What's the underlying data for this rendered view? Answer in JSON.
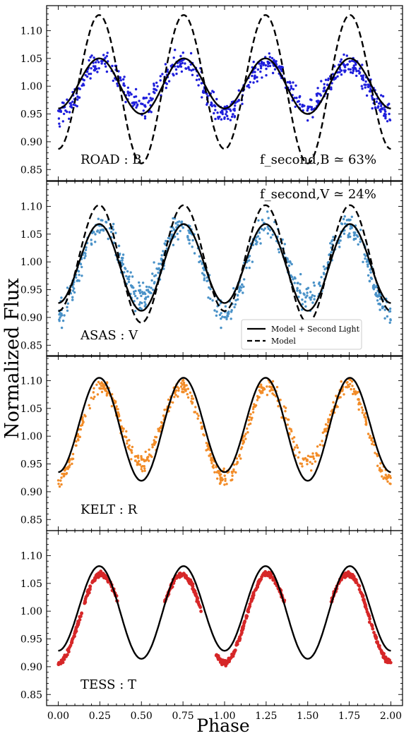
{
  "figure": {
    "ylabel": "Normalized Flux",
    "xlabel": "Phase"
  },
  "chart_data": [
    {
      "type": "scatter",
      "band_label": "ROAD : B",
      "annotation": "f_second,B ≃ 63%",
      "ylim": [
        0.83,
        1.145
      ],
      "xlim": [
        -0.07,
        2.07
      ],
      "yticks": [
        "0.85",
        "0.90",
        "0.95",
        "1.00",
        "1.05",
        "1.10"
      ],
      "x": [
        0.0,
        0.25,
        0.5,
        0.75,
        1.0,
        1.25,
        1.5,
        1.75,
        2.0
      ],
      "series": [
        {
          "name": "Data",
          "color": "#1f1fdc",
          "mean": 1.0,
          "amp1": -0.0075,
          "amp2": 0.0425,
          "scatter": 0.018
        },
        {
          "name": "Model + Second Light",
          "style": "solid",
          "values": [
            0.945,
            1.05,
            0.965,
            1.05,
            0.945,
            1.05,
            0.965,
            1.05,
            0.945
          ]
        },
        {
          "name": "Model",
          "style": "dashed",
          "values": [
            0.848,
            1.128,
            0.9,
            1.128,
            0.848,
            1.128,
            0.9,
            1.128,
            0.848
          ]
        }
      ]
    },
    {
      "type": "scatter",
      "band_label": "ASAS : V",
      "annotation": "f_second,V ≃ 24%",
      "ylim": [
        0.83,
        1.145
      ],
      "xlim": [
        -0.07,
        2.07
      ],
      "yticks": [
        "0.85",
        "0.90",
        "0.95",
        "1.00",
        "1.05",
        "1.10"
      ],
      "legend": {
        "placement": "bottom-right",
        "entries": [
          "Model + Second Light",
          "Model"
        ]
      },
      "x": [
        0.0,
        0.25,
        0.5,
        0.75,
        1.0,
        1.25,
        1.5,
        1.75,
        2.0
      ],
      "series": [
        {
          "name": "Data",
          "color": "#4a92c8",
          "mean": 0.9935,
          "amp1": -0.0145,
          "amp2": 0.0725,
          "scatter": 0.02
        },
        {
          "name": "Model + Second Light",
          "style": "solid",
          "values": [
            0.905,
            1.068,
            0.933,
            1.068,
            0.905,
            1.068,
            0.933,
            1.068,
            0.905
          ]
        },
        {
          "name": "Model",
          "style": "dashed",
          "values": [
            0.88,
            1.102,
            0.922,
            1.102,
            0.88,
            1.102,
            0.922,
            1.102,
            0.88
          ]
        }
      ]
    },
    {
      "type": "scatter",
      "band_label": "KELT : R",
      "ylim": [
        0.83,
        1.145
      ],
      "xlim": [
        -0.07,
        2.07
      ],
      "yticks": [
        "0.85",
        "0.90",
        "0.95",
        "1.00",
        "1.05",
        "1.10"
      ],
      "x": [
        0.0,
        0.25,
        0.5,
        0.75,
        1.0,
        1.25,
        1.5,
        1.75,
        2.0
      ],
      "series": [
        {
          "name": "Data",
          "color": "#f28c28",
          "mean": 1.0135,
          "amp1": -0.0155,
          "amp2": 0.0765,
          "scatter": 0.012
        },
        {
          "name": "Model",
          "style": "solid",
          "values": [
            0.912,
            1.105,
            0.943,
            1.105,
            0.912,
            1.105,
            0.943,
            1.105,
            0.912
          ]
        }
      ]
    },
    {
      "type": "scatter",
      "band_label": "TESS : T",
      "ylim": [
        0.83,
        1.145
      ],
      "xlim": [
        -0.07,
        2.07
      ],
      "yticks": [
        "0.85",
        "0.90",
        "0.95",
        "1.00",
        "1.05",
        "1.10"
      ],
      "xticks": [
        "0.00",
        "0.25",
        "0.50",
        "0.75",
        "1.00",
        "1.25",
        "1.50",
        "1.75",
        "2.00"
      ],
      "x": [
        0.0,
        0.25,
        0.5,
        0.75,
        1.0,
        1.25,
        1.5,
        1.75,
        2.0
      ],
      "series": [
        {
          "name": "Data",
          "color": "#d62728",
          "mean": 0.9938,
          "amp1": -0.0137,
          "amp2": 0.0725,
          "scatter": 0.004,
          "coverage": [
            [
              0.0,
              0.36
            ],
            [
              0.64,
              0.86
            ],
            [
              0.95,
              1.36
            ],
            [
              1.64,
              2.0
            ]
          ]
        },
        {
          "name": "Model",
          "style": "solid",
          "values": [
            0.907,
            1.081,
            0.936,
            1.081,
            0.907,
            1.081,
            0.936,
            1.081,
            0.907
          ]
        }
      ]
    }
  ]
}
